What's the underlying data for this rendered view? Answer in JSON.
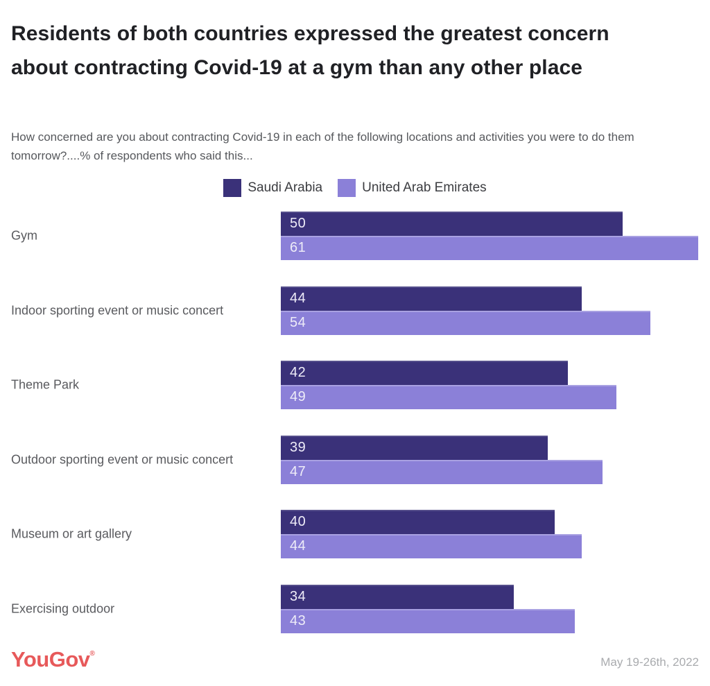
{
  "chart_data": {
    "type": "bar",
    "orientation": "horizontal",
    "title": "Residents of both countries expressed the greatest concern about contracting Covid-19 at a gym than any other place",
    "subtitle": "How concerned are you about contracting Covid-19 in each of the following locations and activities you were to do them tomorrow?....% of respondents who said this...",
    "categories": [
      "Gym",
      "Indoor sporting event or music concert",
      "Theme Park",
      "Outdoor sporting event or music concert",
      "Museum or art gallery",
      "Exercising outdoor"
    ],
    "series": [
      {
        "name": "Saudi Arabia",
        "color": "#3a3179",
        "values": [
          50,
          44,
          42,
          39,
          40,
          34
        ]
      },
      {
        "name": "United Arab Emirates",
        "color": "#8b80d8",
        "values": [
          61,
          54,
          49,
          47,
          44,
          43
        ]
      }
    ],
    "xlim": [
      0,
      61
    ],
    "grid": false,
    "legend_position": "top-center",
    "value_labels": "inside-start",
    "value_label_color": "#eeecf8"
  },
  "footer": {
    "logo": "YouGov",
    "registered_mark": "®",
    "date_range": "May 19-26th, 2022"
  }
}
